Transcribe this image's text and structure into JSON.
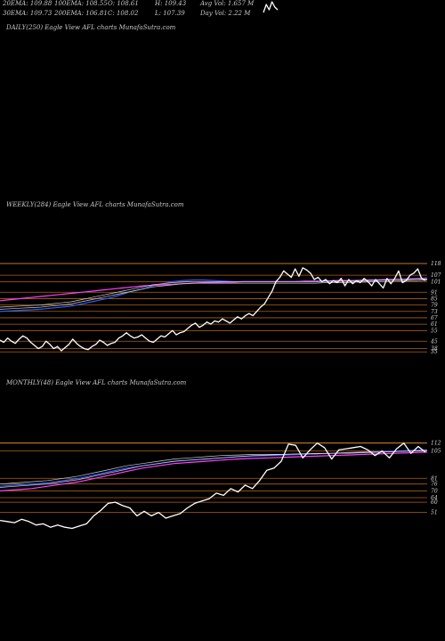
{
  "header": {
    "row1": [
      "20EMA: 109.88",
      "100EMA: 108.55",
      "O: 108.61",
      "H: 109.43",
      "Avg Vol: 1.657 M"
    ],
    "row2": [
      "30EMA: 109.73",
      "200EMA: 106.81",
      "C: 108.02",
      "L: 107.39",
      "Day Vol: 2.22  M"
    ]
  },
  "colors": {
    "background": "#000000",
    "price": "#ffffff",
    "ema_blue": "#2b5cff",
    "ema_magenta": "#ff40ff",
    "ema_white": "#d0d0d0",
    "level": "#b06010",
    "level_bright": "#ff9a30"
  },
  "chart_data": [
    {
      "type": "line",
      "title": "DAILY(250) Eagle  View  AFL  charts MunafaSutra.com",
      "y_tick_labels": [],
      "series": [
        {
          "values": [
            4,
            1,
            3,
            0,
            2,
            3
          ]
        }
      ]
    },
    {
      "type": "line",
      "title": "WEEKLY(284) Eagle  View  AFL  charts MunafaSutra.com",
      "ylim": [
        31,
        123
      ],
      "y_tick_labels": [
        118,
        107,
        101,
        91,
        85,
        79,
        73,
        67,
        61,
        55,
        45,
        38,
        35
      ],
      "levels": [
        118,
        107,
        101,
        91,
        85,
        79,
        73,
        67,
        61,
        55,
        45,
        38,
        35
      ],
      "series": [
        {
          "values": [
            46,
            44,
            48,
            45,
            43,
            47,
            50,
            48,
            44,
            41,
            38,
            40,
            45,
            42,
            38,
            40,
            36,
            39,
            42,
            47,
            43,
            40,
            38,
            37,
            40,
            42,
            46,
            44,
            41,
            43,
            44,
            48,
            50,
            53,
            50,
            48,
            49,
            51,
            48,
            45,
            44,
            47,
            50,
            49,
            52,
            55,
            51,
            53,
            54,
            57,
            60,
            62,
            58,
            60,
            63,
            61,
            64,
            63,
            66,
            64,
            62,
            65,
            68,
            66,
            69,
            71,
            69,
            73,
            77,
            80,
            86,
            92,
            101,
            105,
            111,
            108,
            105,
            113,
            106,
            114,
            112,
            109,
            103,
            105,
            101,
            103,
            99,
            102,
            100,
            104,
            97,
            103,
            99,
            102,
            100,
            104,
            101,
            97,
            103,
            99,
            95,
            104,
            99,
            104,
            111,
            100,
            102,
            107,
            109,
            113,
            104,
            102
          ]
        },
        {
          "values": [
            73,
            73.5,
            74,
            74.5,
            75,
            76,
            77,
            78,
            80,
            82,
            84,
            86,
            89,
            92,
            94,
            97,
            99,
            101,
            102,
            102.5,
            102.5,
            102,
            101.5,
            101,
            101,
            101,
            101,
            101,
            101,
            101,
            101,
            101,
            101,
            101.5,
            101.5,
            101.5,
            102,
            102,
            102.5,
            103,
            103.5,
            104,
            104.5
          ]
        },
        {
          "values": [
            83,
            84,
            85,
            86,
            87,
            88,
            89,
            90,
            91,
            92,
            93,
            94,
            95,
            96,
            97,
            97.5,
            98,
            98.5,
            99,
            99.5,
            100,
            100,
            100.5,
            100.5,
            101,
            101,
            101,
            101,
            101,
            101,
            101.5,
            101.5,
            101.5,
            102,
            102,
            102,
            102.5,
            102.5,
            103,
            103,
            103,
            103.5,
            103.5
          ]
        },
        {
          "values": [
            75,
            75.5,
            76,
            76.5,
            77,
            78,
            79,
            80,
            82,
            84,
            86,
            88,
            90,
            92,
            94,
            96,
            97,
            98,
            99,
            99.5,
            99.5,
            99.5,
            99.5,
            99.5,
            99.5,
            99.5,
            99.5,
            99.5,
            99.5,
            99.5,
            99.5,
            99.5,
            100,
            100,
            100,
            100.5,
            100.5,
            101,
            101,
            101.5,
            102,
            102,
            102.5
          ]
        },
        {
          "values": [
            77,
            77.5,
            78,
            78.5,
            79,
            80,
            81,
            82,
            84,
            86,
            88,
            90,
            92,
            94,
            96,
            98,
            99,
            100,
            100.5,
            101,
            101,
            101,
            101,
            101,
            101,
            101,
            101,
            101,
            101,
            101,
            101,
            101,
            101.5,
            101.5,
            101.5,
            102,
            102,
            102.5,
            102.5,
            103,
            103,
            103.5,
            103.5
          ]
        }
      ]
    },
    {
      "type": "line",
      "title": "MONTHLY(48) Eagle  View  AFL  charts MunafaSutra.com",
      "ylim": [
        28,
        118
      ],
      "y_tick_labels": [
        112,
        105,
        81,
        76,
        70,
        64,
        60,
        51
      ],
      "levels": [
        112,
        105,
        81,
        76,
        70,
        64,
        60,
        51
      ],
      "series": [
        {
          "values": [
            44,
            43,
            42,
            45,
            43,
            40,
            41,
            38,
            40,
            38,
            37,
            39,
            41,
            48,
            53,
            59,
            60,
            57,
            55,
            48,
            52,
            48,
            51,
            46,
            48,
            50,
            55,
            59,
            61,
            63,
            68,
            66,
            72,
            69,
            75,
            72,
            79,
            88,
            90,
            96,
            111,
            110,
            99,
            106,
            112,
            108,
            98,
            106,
            107,
            108,
            109,
            106,
            101,
            105,
            99,
            107,
            112,
            103,
            109,
            104
          ]
        },
        {
          "values": [
            74,
            75,
            76,
            77,
            79,
            81,
            84,
            87,
            90,
            92,
            94,
            96,
            97,
            98,
            99,
            100,
            100.5,
            101,
            101.5,
            102,
            102.5,
            103,
            103.5,
            104,
            104.5,
            105,
            105.5,
            106
          ]
        },
        {
          "values": [
            70,
            71,
            72,
            74,
            76,
            78,
            81,
            84,
            87,
            90,
            92,
            94,
            95,
            96,
            97,
            98,
            98.5,
            99,
            99.5,
            100,
            100.5,
            101,
            101.5,
            102,
            102.5,
            103,
            103.5,
            104
          ]
        },
        {
          "values": [
            76,
            77,
            78,
            79,
            81,
            83,
            86,
            89,
            92,
            94,
            96,
            98,
            99,
            100,
            101,
            101.5,
            102,
            102,
            102,
            102.5,
            102.5,
            103,
            103,
            103.5,
            104,
            104.5,
            105,
            105.5
          ]
        },
        {
          "values": [
            73,
            74,
            75,
            76,
            78,
            80,
            83,
            86,
            89,
            92,
            94,
            96,
            97,
            98,
            99,
            100,
            101,
            101.5,
            102,
            102.5,
            103,
            103,
            103.5,
            104,
            104,
            104.5,
            105,
            105.5
          ]
        }
      ]
    }
  ]
}
